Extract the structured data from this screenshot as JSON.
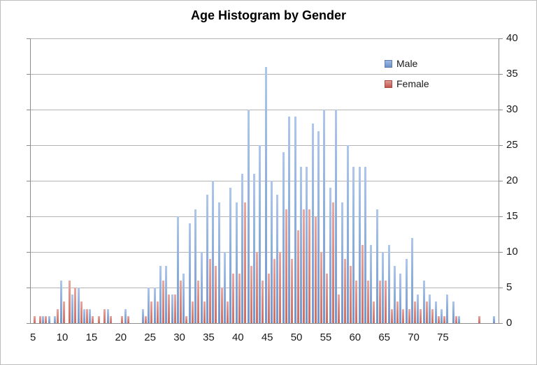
{
  "title": "Age Histogram by Gender",
  "legend": {
    "male_label": "Male",
    "female_label": "Female"
  },
  "colors": {
    "male": "#4F81BD",
    "male_light": "#AEC7EC",
    "male_dark": "#7496CB",
    "female": "#C0504D",
    "female_light": "#E9A8A1",
    "female_dark": "#CC6E66",
    "gridline": "#B3B3B3",
    "axis": "#8C8C8C",
    "text": "#1A1A1A"
  },
  "chart_data": {
    "type": "bar",
    "title": "Age Histogram by Gender",
    "xlabel": "",
    "ylabel": "",
    "categories": [
      5,
      6,
      7,
      8,
      9,
      10,
      11,
      12,
      13,
      14,
      15,
      16,
      17,
      18,
      19,
      20,
      21,
      22,
      23,
      24,
      25,
      26,
      27,
      28,
      29,
      30,
      31,
      32,
      33,
      34,
      35,
      36,
      37,
      38,
      39,
      40,
      41,
      42,
      43,
      44,
      45,
      46,
      47,
      48,
      49,
      50,
      51,
      52,
      53,
      54,
      55,
      56,
      57,
      58,
      59,
      60,
      61,
      62,
      63,
      64,
      65,
      66,
      67,
      68,
      69,
      70,
      71,
      72,
      73,
      74,
      75,
      76,
      77,
      78,
      79,
      80,
      81,
      82,
      83,
      84
    ],
    "series": [
      {
        "name": "Male",
        "color": "#4F81BD",
        "values": [
          0,
          0,
          1,
          1,
          1,
          6,
          0,
          4,
          5,
          2,
          2,
          0,
          0,
          2,
          0,
          0,
          2,
          0,
          0,
          2,
          5,
          5,
          8,
          8,
          4,
          15,
          7,
          14,
          16,
          10,
          18,
          20,
          17,
          10,
          19,
          17,
          21,
          30,
          21,
          25,
          36,
          20,
          18,
          24,
          29,
          29,
          22,
          22,
          28,
          27,
          30,
          19,
          30,
          17,
          25,
          22,
          22,
          22,
          11,
          16,
          10,
          11,
          8,
          7,
          9,
          12,
          4,
          6,
          4,
          3,
          2,
          4,
          3,
          1,
          0,
          0,
          0,
          0,
          0,
          1
        ]
      },
      {
        "name": "Female",
        "color": "#C0504D",
        "values": [
          1,
          1,
          1,
          0,
          2,
          3,
          6,
          5,
          3,
          2,
          1,
          1,
          2,
          1,
          0,
          1,
          1,
          0,
          0,
          1,
          3,
          3,
          6,
          4,
          4,
          6,
          1,
          3,
          6,
          3,
          9,
          8,
          5,
          3,
          7,
          7,
          17,
          8,
          10,
          6,
          7,
          9,
          10,
          16,
          9,
          13,
          16,
          16,
          15,
          10,
          7,
          17,
          4,
          9,
          8,
          6,
          11,
          6,
          3,
          6,
          6,
          2,
          3,
          2,
          2,
          3,
          2,
          3,
          2,
          1,
          1,
          0,
          1,
          0,
          0,
          0,
          1,
          0,
          0,
          0
        ]
      }
    ],
    "xticks": [
      5,
      10,
      15,
      20,
      25,
      30,
      35,
      40,
      45,
      50,
      55,
      60,
      65,
      70,
      75
    ],
    "yticks": [
      0,
      5,
      10,
      15,
      20,
      25,
      30,
      35,
      40
    ],
    "ylim": [
      0,
      40
    ],
    "grid": "horizontal",
    "legend_position": "inside-top-right",
    "y_axis_side": "right"
  }
}
